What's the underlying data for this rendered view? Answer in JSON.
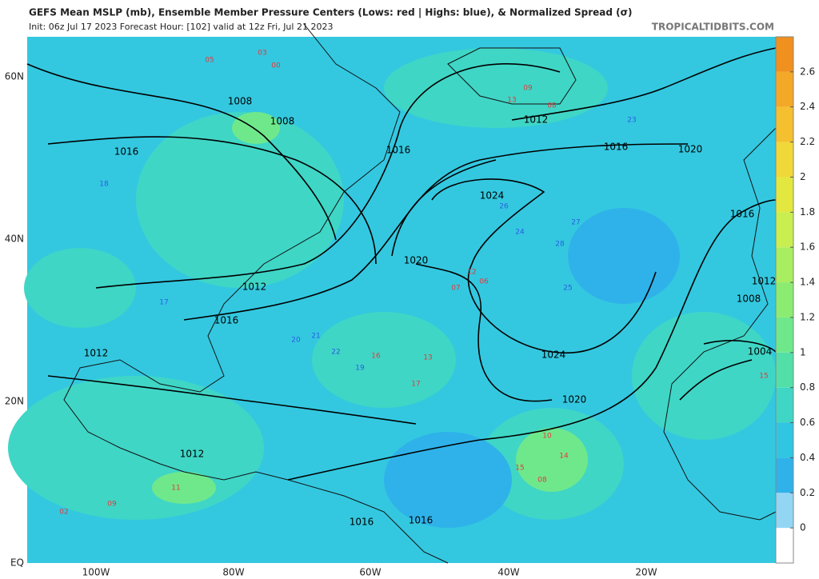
{
  "header": {
    "title": "GEFS Mean MSLP (mb), Ensemble Member Pressure Centers (Lows: red | Highs: blue), & Normalized Spread (σ)",
    "subtitle": "Init: 06z Jul 17 2023   Forecast Hour: [102]   valid at 12z Fri, Jul 21 2023",
    "source": "TROPICALTIDBITS.COM"
  },
  "map": {
    "lat_labels": [
      "60N",
      "40N",
      "20N",
      "EQ"
    ],
    "lon_labels": [
      "100W",
      "80W",
      "60W",
      "40W",
      "20W"
    ],
    "isobar_labels": [
      "1008",
      "1008",
      "1016",
      "1016",
      "1024",
      "1020",
      "1012",
      "1016",
      "1012",
      "1024",
      "1020",
      "1012",
      "1016",
      "1016",
      "1012",
      "1016",
      "1020",
      "1016",
      "1012",
      "1008",
      "1004"
    ],
    "centers": [
      {
        "label": "05",
        "color": "#e23a3a"
      },
      {
        "label": "03",
        "color": "#e23a3a"
      },
      {
        "label": "00",
        "color": "#e23a3a"
      },
      {
        "label": "09",
        "color": "#e23a3a"
      },
      {
        "label": "13",
        "color": "#e23a3a"
      },
      {
        "label": "08",
        "color": "#e23a3a"
      },
      {
        "label": "12",
        "color": "#e23a3a"
      },
      {
        "label": "07",
        "color": "#e23a3a"
      },
      {
        "label": "06",
        "color": "#e23a3a"
      },
      {
        "label": "10",
        "color": "#e23a3a"
      },
      {
        "label": "14",
        "color": "#e23a3a"
      },
      {
        "label": "15",
        "color": "#e23a3a"
      },
      {
        "label": "08",
        "color": "#e23a3a"
      },
      {
        "label": "09",
        "color": "#e23a3a"
      },
      {
        "label": "11",
        "color": "#e23a3a"
      },
      {
        "label": "02",
        "color": "#e23a3a"
      },
      {
        "label": "16",
        "color": "#e23a3a"
      },
      {
        "label": "13",
        "color": "#e23a3a"
      },
      {
        "label": "17",
        "color": "#e23a3a"
      },
      {
        "label": "15",
        "color": "#e23a3a"
      },
      {
        "label": "20",
        "color": "#2a5ee0"
      },
      {
        "label": "25",
        "color": "#2a5ee0"
      },
      {
        "label": "26",
        "color": "#2a5ee0"
      },
      {
        "label": "27",
        "color": "#2a5ee0"
      },
      {
        "label": "28",
        "color": "#2a5ee0"
      },
      {
        "label": "24",
        "color": "#2a5ee0"
      },
      {
        "label": "21",
        "color": "#2a5ee0"
      },
      {
        "label": "19",
        "color": "#2a5ee0"
      },
      {
        "label": "18",
        "color": "#2a5ee0"
      },
      {
        "label": "17",
        "color": "#2a5ee0"
      },
      {
        "label": "22",
        "color": "#2a5ee0"
      },
      {
        "label": "23",
        "color": "#2a5ee0"
      }
    ]
  },
  "colorbar": {
    "ticks": [
      0,
      0.2,
      0.4,
      0.6,
      0.8,
      1,
      1.2,
      1.4,
      1.6,
      1.8,
      2,
      2.2,
      2.4,
      2.6
    ],
    "lim": [
      -0.2,
      2.8
    ],
    "colors": [
      "#ffffff",
      "#93d6f4",
      "#2fb2ea",
      "#30c6e2",
      "#3fd6c6",
      "#52e0a8",
      "#6fe88c",
      "#8cec72",
      "#a9ee60",
      "#c8ee50",
      "#e2e840",
      "#f0d838",
      "#f4c030",
      "#f4a828",
      "#f0901e"
    ]
  }
}
